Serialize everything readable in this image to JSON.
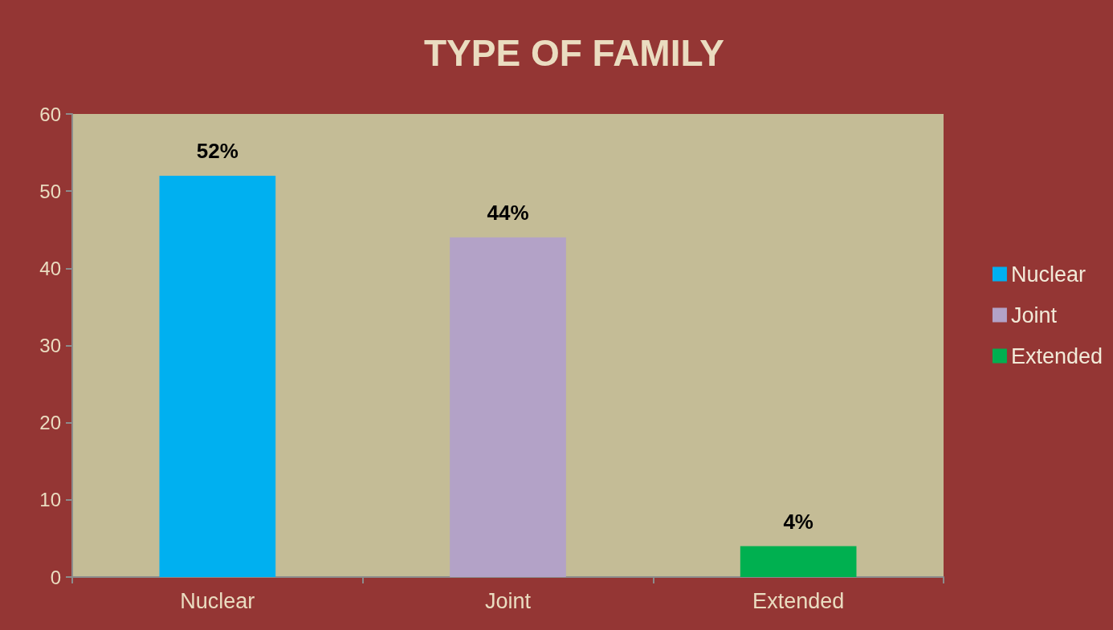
{
  "chart_data": {
    "type": "bar",
    "title": "TYPE OF FAMILY",
    "categories": [
      "Nuclear",
      "Joint",
      "Extended"
    ],
    "series": [
      {
        "name": "Nuclear",
        "color": "#00b0f0",
        "values": [
          52,
          null,
          null
        ],
        "value_labels": [
          "52%",
          null,
          null
        ]
      },
      {
        "name": "Joint",
        "color": "#b3a2c7",
        "values": [
          null,
          44,
          null
        ],
        "value_labels": [
          null,
          "44%",
          null
        ]
      },
      {
        "name": "Extended",
        "color": "#00b050",
        "values": [
          null,
          null,
          4
        ],
        "value_labels": [
          null,
          null,
          "4%"
        ]
      }
    ],
    "ylim": [
      0,
      60
    ],
    "yticks": [
      0,
      10,
      20,
      30,
      40,
      50,
      60
    ],
    "grid": false,
    "legend": "right"
  }
}
